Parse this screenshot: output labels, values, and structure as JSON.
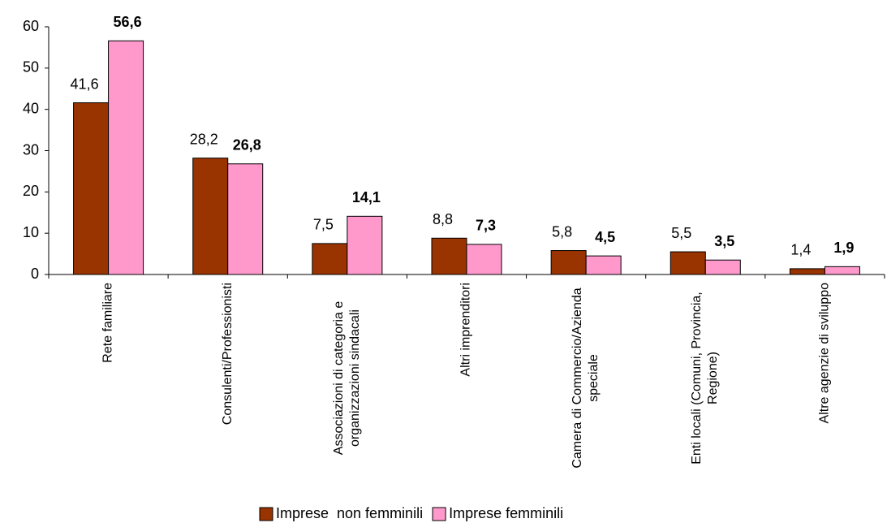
{
  "chart_data": {
    "type": "bar",
    "categories": [
      "Rete familiare",
      "Consulenti/Professionisti",
      "Associazioni di categoria e organizzazioni sindacali",
      "Altri imprenditori",
      "Camera di Commercio/Azienda speciale",
      "Enti locali (Comuni, Provincia, Regione)",
      "Altre agenzie di sviluppo"
    ],
    "series": [
      {
        "name": "Imprese  non femminili",
        "color": "#993300",
        "values": [
          41.6,
          28.2,
          7.5,
          8.8,
          5.8,
          5.5,
          1.4
        ],
        "value_labels": [
          "41,6",
          "28,2",
          "7,5",
          "8,8",
          "5,8",
          "5,5",
          "1,4"
        ]
      },
      {
        "name": "Imprese femminili",
        "color": "#ff99cc",
        "values": [
          56.6,
          26.8,
          14.1,
          7.3,
          4.5,
          3.5,
          1.9
        ],
        "value_labels": [
          "56,6",
          "26,8",
          "14,1",
          "7,3",
          "4,5",
          "3,5",
          "1,9"
        ]
      }
    ],
    "ylim": [
      0,
      60
    ],
    "yticks": [
      0,
      10,
      20,
      30,
      40,
      50,
      60
    ],
    "legend": "bottom"
  }
}
